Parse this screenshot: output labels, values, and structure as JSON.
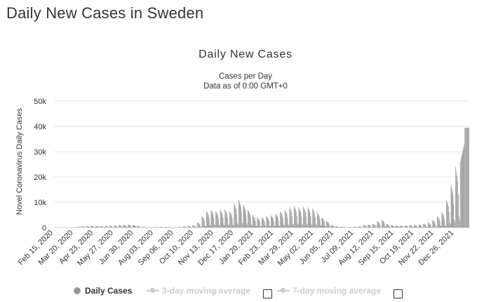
{
  "page": {
    "heading": "Daily New Cases in Sweden"
  },
  "chart_data": {
    "type": "bar",
    "title": "Daily New Cases",
    "subtitle_lines": [
      "Cases per Day",
      "Data as of 0:00 GMT+0"
    ],
    "ylabel": "Novel Coronavirus Daily Cases",
    "xlabel": "",
    "ylim": [
      0,
      50000
    ],
    "y_ticks": [
      "0",
      "10k",
      "20k",
      "30k",
      "40k",
      "50k"
    ],
    "y_tick_values": [
      0,
      10000,
      20000,
      30000,
      40000,
      50000
    ],
    "x_ticks": [
      "Feb 15, 2020",
      "Mar 20, 2020",
      "Apr 23, 2020",
      "May 27, 2020",
      "Jun 30, 2020",
      "Aug 03, 2020",
      "Sep 06, 2020",
      "Oct 10, 2020",
      "Nov 13, 2020",
      "Dec 17, 2020",
      "Jan 20, 2021",
      "Feb 23, 2021",
      "Mar 29, 2021",
      "May 02, 2021",
      "Jun 05, 2021",
      "Jul 09, 2021",
      "Aug 12, 2021",
      "Sep 15, 2021",
      "Oct 19, 2021",
      "Nov 22, 2021",
      "Dec 26, 2021"
    ],
    "grid": true,
    "bar_color": "#999999",
    "series": [
      {
        "name": "Daily Cases",
        "weekly_peak_values": [
          0,
          0,
          0,
          10,
          100,
          300,
          500,
          600,
          700,
          650,
          600,
          700,
          800,
          900,
          1000,
          1100,
          1200,
          1100,
          700,
          300,
          150,
          100,
          200,
          300,
          250,
          200,
          200,
          300,
          500,
          700,
          900,
          2000,
          4500,
          6500,
          7000,
          6500,
          7000,
          7200,
          6500,
          9500,
          11000,
          9000,
          7000,
          5000,
          4000,
          4000,
          4500,
          4800,
          5500,
          6500,
          7000,
          8000,
          8500,
          8000,
          8200,
          8000,
          7500,
          6000,
          4000,
          2500,
          1000,
          500,
          300,
          200,
          200,
          300,
          500,
          1000,
          1200,
          1500,
          2500,
          3000,
          1500,
          1000,
          800,
          800,
          900,
          1000,
          1000,
          1200,
          1500,
          2000,
          3000,
          4500,
          6000,
          11000,
          17000,
          24000,
          26000,
          39500
        ]
      }
    ],
    "legend": [
      {
        "label": "Daily Cases",
        "active": true
      },
      {
        "label": "3-day moving average",
        "active": false
      },
      {
        "label": "7-day moving average",
        "active": false
      }
    ],
    "legend_placement": "bottom"
  }
}
